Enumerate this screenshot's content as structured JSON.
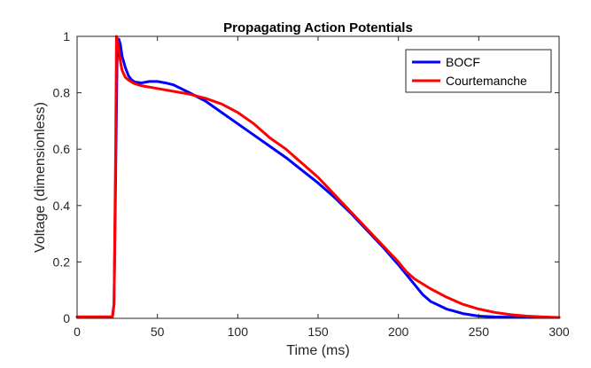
{
  "chart_data": {
    "type": "line",
    "title": "Propagating Action Potentials",
    "xlabel": "Time (ms)",
    "ylabel": "Voltage (dimensionless)",
    "xlim": [
      0,
      300
    ],
    "ylim": [
      0,
      1
    ],
    "xticks": [
      0,
      50,
      100,
      150,
      200,
      250,
      300
    ],
    "yticks": [
      0,
      0.2,
      0.4,
      0.6,
      0.8,
      1
    ],
    "ytick_labels": [
      "0",
      "0.2",
      "0.4",
      "0.6",
      "0.8",
      "1"
    ],
    "grid": false,
    "legend_position": "top-right",
    "series": [
      {
        "name": "BOCF",
        "color": "#0000ff",
        "x": [
          0,
          22,
          23,
          24,
          25,
          26,
          27,
          28,
          30,
          32,
          34,
          36,
          40,
          45,
          50,
          55,
          60,
          70,
          80,
          90,
          100,
          110,
          120,
          130,
          140,
          150,
          160,
          170,
          180,
          190,
          200,
          205,
          210,
          215,
          220,
          230,
          240,
          250,
          260,
          270,
          280,
          290,
          300
        ],
        "y": [
          0.005,
          0.005,
          0.05,
          0.5,
          0.97,
          0.99,
          0.97,
          0.93,
          0.89,
          0.86,
          0.845,
          0.838,
          0.835,
          0.84,
          0.84,
          0.835,
          0.828,
          0.8,
          0.77,
          0.73,
          0.69,
          0.65,
          0.61,
          0.57,
          0.525,
          0.48,
          0.43,
          0.375,
          0.315,
          0.255,
          0.19,
          0.155,
          0.12,
          0.085,
          0.06,
          0.033,
          0.017,
          0.008,
          0.005,
          0.004,
          0.003,
          0.003,
          0.003
        ]
      },
      {
        "name": "Courtemanche",
        "color": "#ff0000",
        "x": [
          0,
          22,
          23,
          24,
          24.5,
          25,
          26,
          27,
          28,
          30,
          32,
          34,
          36,
          40,
          50,
          60,
          70,
          80,
          90,
          100,
          110,
          120,
          130,
          140,
          150,
          160,
          170,
          180,
          190,
          200,
          205,
          210,
          220,
          230,
          240,
          250,
          260,
          270,
          280,
          290,
          300
        ],
        "y": [
          0.005,
          0.005,
          0.05,
          0.6,
          1.0,
          0.99,
          0.95,
          0.91,
          0.88,
          0.855,
          0.845,
          0.838,
          0.832,
          0.825,
          0.815,
          0.805,
          0.795,
          0.78,
          0.76,
          0.73,
          0.69,
          0.64,
          0.6,
          0.55,
          0.5,
          0.44,
          0.38,
          0.32,
          0.26,
          0.2,
          0.165,
          0.14,
          0.105,
          0.075,
          0.05,
          0.033,
          0.021,
          0.013,
          0.008,
          0.005,
          0.003
        ]
      }
    ]
  }
}
